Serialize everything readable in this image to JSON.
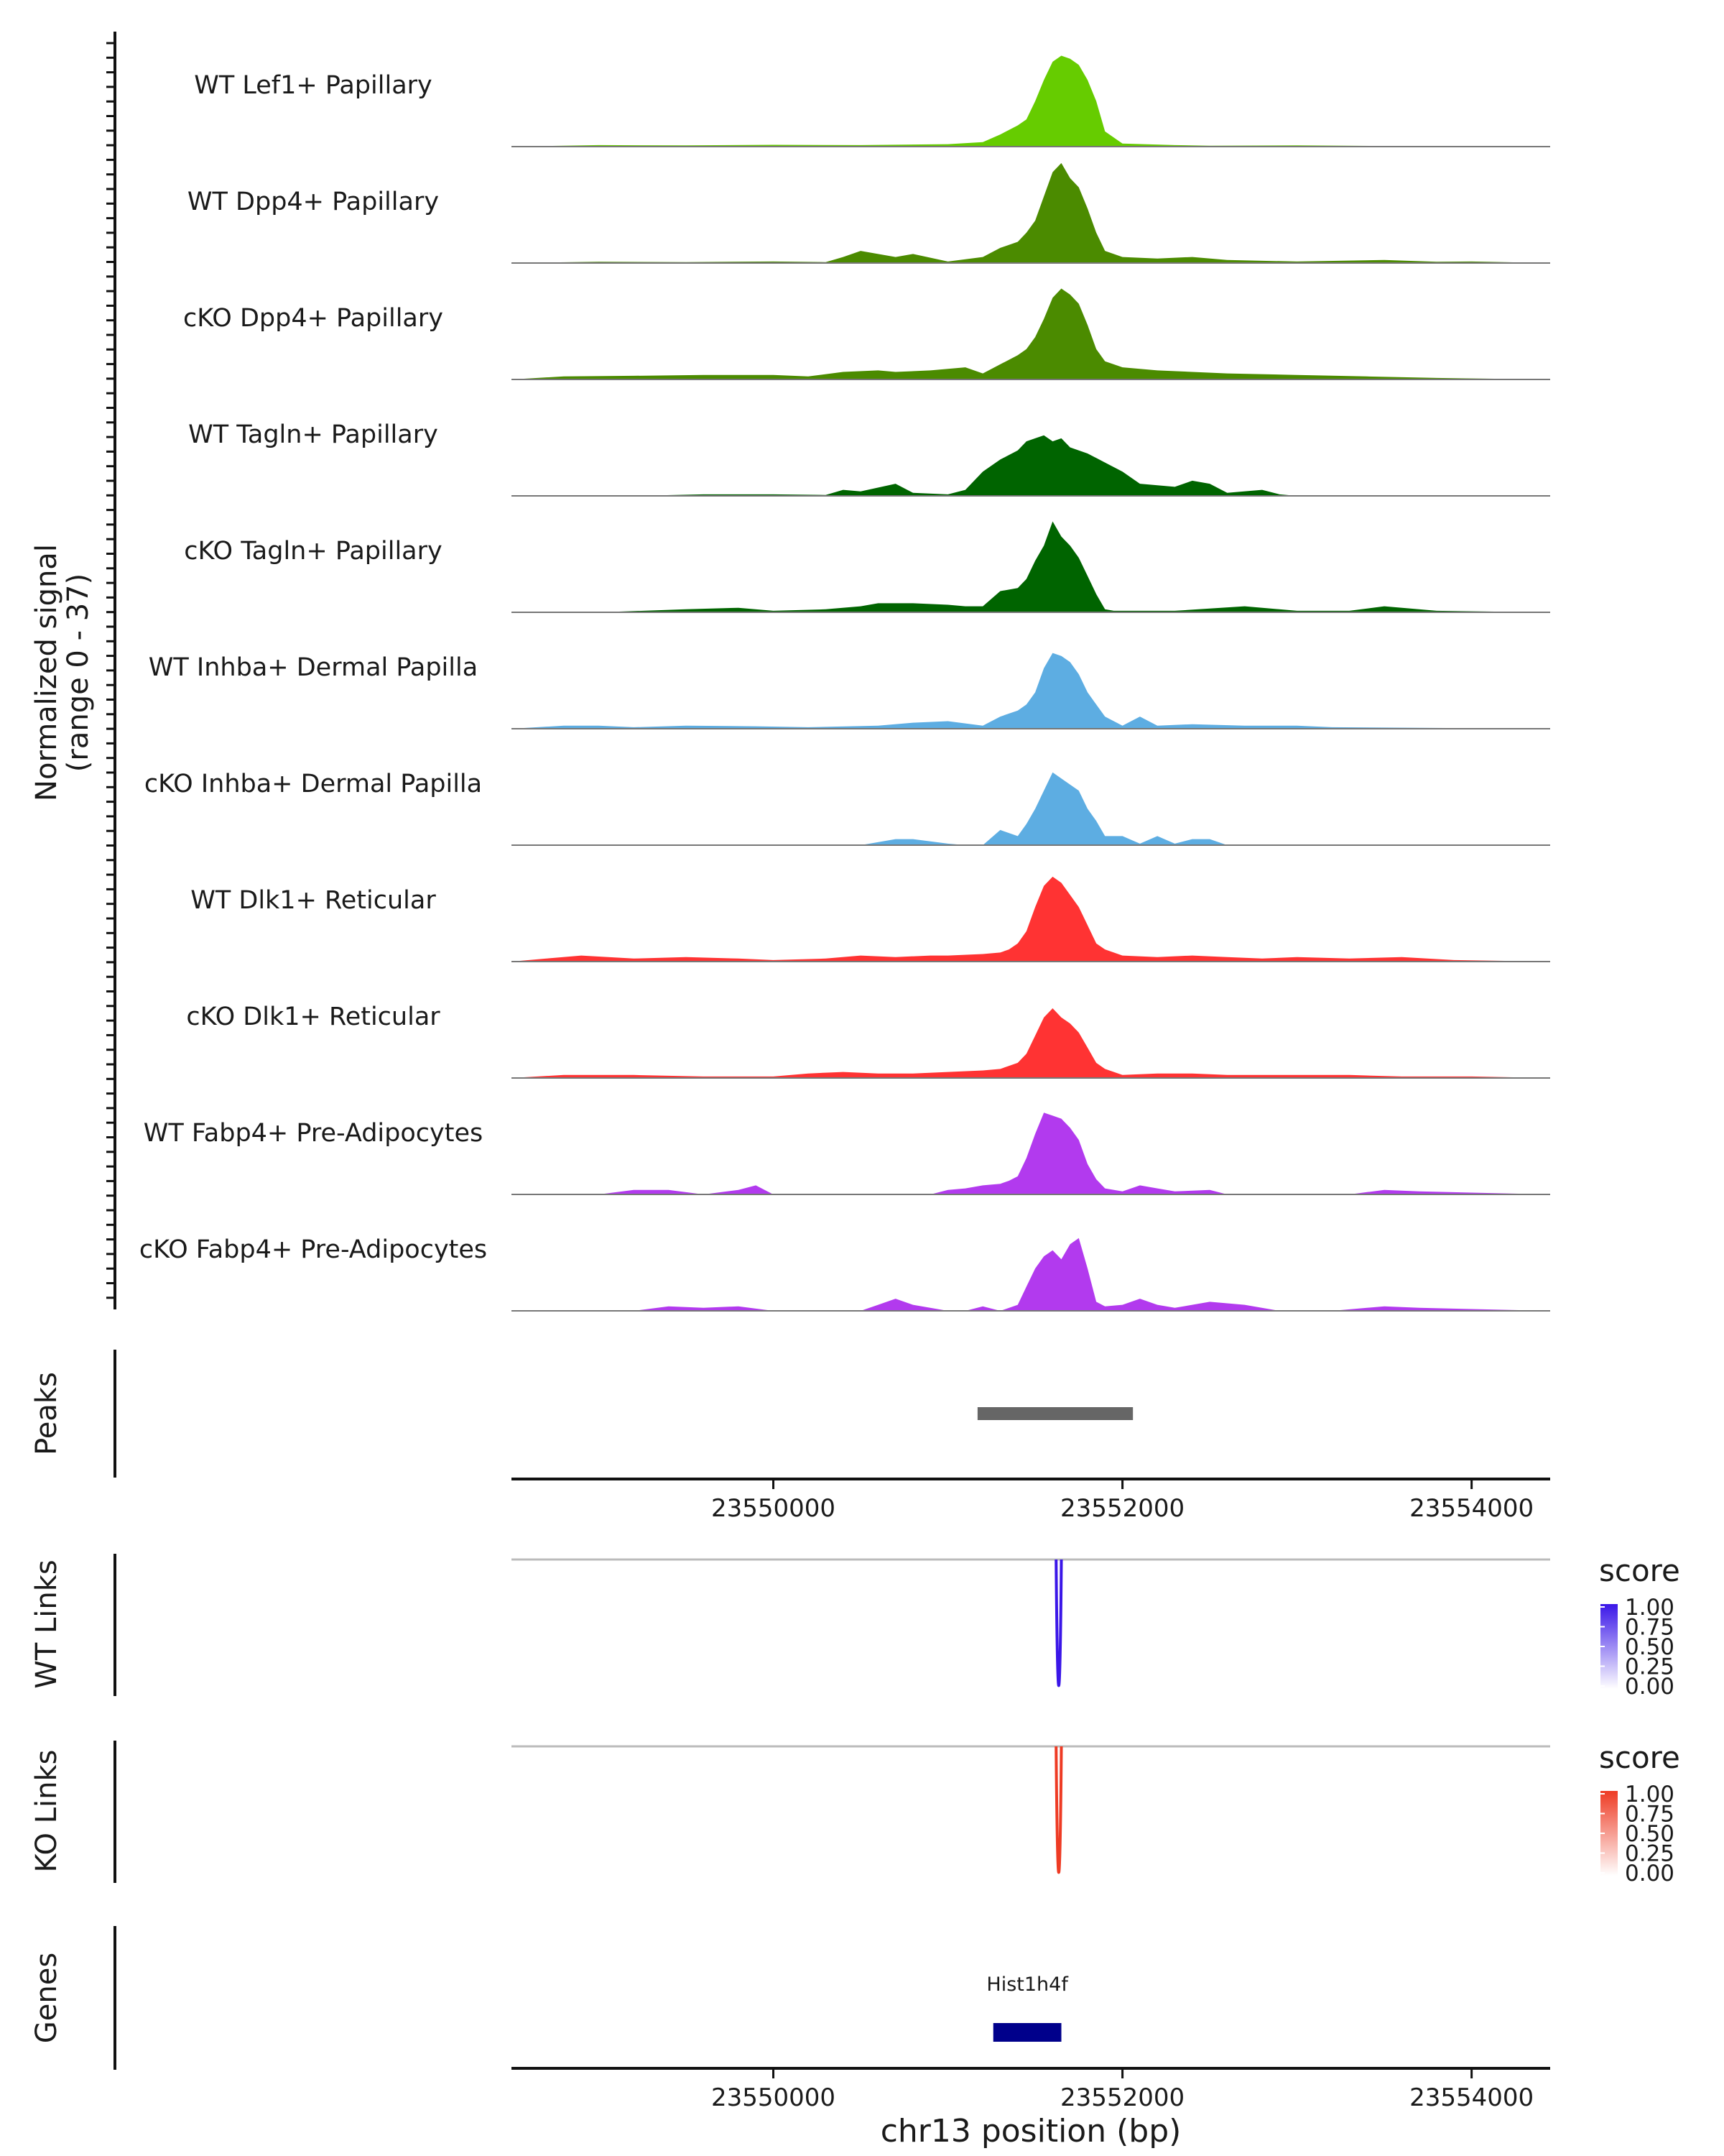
{
  "chart_data": {
    "type": "area",
    "title": "",
    "xlabel": "chr13 position (bp)",
    "x_range": [
      23548500,
      23554450
    ],
    "x_ticks": [
      23550000,
      23552000,
      23554000
    ],
    "x_tick_labels": [
      "23550000",
      "23552000",
      "23554000"
    ],
    "coverage_panel": {
      "ylabel_line1": "Normalized signal",
      "ylabel_line2": "(range 0 - 37)",
      "y_range": [
        0,
        37
      ],
      "tracks": [
        {
          "name": "WT Lef1+ Papillary",
          "color": "#66CC00",
          "x": [
            23548500,
            23549000,
            23549500,
            23550000,
            23550500,
            23551000,
            23551200,
            23551300,
            23551400,
            23551450,
            23551500,
            23551550,
            23551600,
            23551650,
            23551700,
            23551750,
            23551800,
            23551850,
            23551900,
            23552000,
            23552300,
            23552500,
            23553000,
            23553500,
            23554000,
            23554450
          ],
          "y": [
            0,
            0.5,
            0.4,
            0.6,
            0.5,
            0.8,
            1.5,
            4,
            7,
            9,
            15,
            22,
            28,
            30,
            29,
            27,
            22,
            15,
            5,
            1,
            0.5,
            0.3,
            0.4,
            0.2,
            0.2,
            0
          ]
        },
        {
          "name": "WT Dpp4+ Papillary",
          "color": "#4B8B00",
          "x": [
            23548500,
            23549000,
            23549500,
            23550000,
            23550300,
            23550400,
            23550500,
            23550700,
            23550800,
            23551000,
            23551200,
            23551300,
            23551400,
            23551450,
            23551500,
            23551550,
            23551600,
            23551650,
            23551700,
            23551750,
            23551800,
            23551850,
            23551900,
            23552000,
            23552200,
            23552400,
            23552600,
            23553000,
            23553500,
            23553800,
            23554000,
            23554450
          ],
          "y": [
            0,
            0.4,
            0.3,
            0.5,
            0.3,
            2,
            4,
            2,
            3,
            0.5,
            2,
            5,
            7,
            10,
            14,
            22,
            30,
            33,
            28,
            25,
            18,
            10,
            4,
            2,
            1.5,
            2,
            1,
            0.5,
            1,
            0.4,
            0.5,
            0
          ]
        },
        {
          "name": "cKO Dpp4+ Papillary",
          "color": "#4B8B00",
          "x": [
            23548500,
            23548800,
            23549200,
            23549600,
            23550000,
            23550200,
            23550400,
            23550600,
            23550700,
            23550900,
            23551100,
            23551200,
            23551300,
            23551400,
            23551450,
            23551500,
            23551550,
            23551600,
            23551650,
            23551700,
            23551750,
            23551800,
            23551850,
            23551900,
            23552000,
            23552200,
            23552400,
            23552600,
            23553000,
            23553400,
            23553800,
            23554450
          ],
          "y": [
            0,
            1,
            1.2,
            1.5,
            1.5,
            1,
            2.5,
            3,
            2.5,
            3,
            4,
            2,
            5,
            8,
            10,
            14,
            20,
            27,
            30,
            28,
            25,
            18,
            10,
            6,
            4,
            3,
            2.5,
            2,
            1.5,
            1,
            0.5,
            0
          ]
        },
        {
          "name": "WT Tagln+ Papillary",
          "color": "#006400",
          "x": [
            23548500,
            23549200,
            23549600,
            23550000,
            23550300,
            23550400,
            23550500,
            23550700,
            23550800,
            23551000,
            23551100,
            23551200,
            23551300,
            23551400,
            23551450,
            23551500,
            23551550,
            23551600,
            23551650,
            23551700,
            23551750,
            23551800,
            23551900,
            23552000,
            23552100,
            23552300,
            23552400,
            23552500,
            23552600,
            23552800,
            23552900,
            23553000,
            23554450
          ],
          "y": [
            0,
            0,
            0.5,
            0.5,
            0.3,
            2,
            1.5,
            4,
            1,
            0.5,
            2,
            8,
            12,
            15,
            18,
            19,
            20,
            18,
            19,
            16,
            15,
            14,
            11,
            8,
            4,
            3,
            5,
            4,
            1,
            2,
            0.5,
            0,
            0
          ]
        },
        {
          "name": "cKO Tagln+ Papillary",
          "color": "#006400",
          "x": [
            23548500,
            23549000,
            23549500,
            23549800,
            23550000,
            23550300,
            23550500,
            23550600,
            23550800,
            23551000,
            23551100,
            23551200,
            23551300,
            23551400,
            23551450,
            23551500,
            23551550,
            23551600,
            23551650,
            23551700,
            23551750,
            23551800,
            23551850,
            23551900,
            23551950,
            23552300,
            23552700,
            23553000,
            23553300,
            23553500,
            23553800,
            23554450
          ],
          "y": [
            0,
            0,
            1,
            1.5,
            0.5,
            1,
            2,
            3,
            3,
            2.5,
            2,
            2,
            7,
            8,
            11,
            17,
            22,
            30,
            25,
            22,
            18,
            12,
            6,
            1,
            0.5,
            0.5,
            2,
            0.5,
            0.5,
            2,
            0.5,
            0
          ]
        },
        {
          "name": "WT Inhba+ Dermal Papilla",
          "color": "#5DADE2",
          "x": [
            23548500,
            23548800,
            23549000,
            23549200,
            23549500,
            23549900,
            23550200,
            23550600,
            23550800,
            23551000,
            23551200,
            23551300,
            23551350,
            23551400,
            23551450,
            23551500,
            23551550,
            23551600,
            23551650,
            23551700,
            23551750,
            23551800,
            23551850,
            23551900,
            23552000,
            23552100,
            23552200,
            23552400,
            23552700,
            23553000,
            23553200,
            23554450
          ],
          "y": [
            0,
            1,
            1,
            0.5,
            1,
            0.8,
            0.5,
            1,
            2,
            2.5,
            1,
            4,
            5,
            6,
            8,
            12,
            20,
            25,
            24,
            22,
            18,
            12,
            8,
            4,
            1,
            4,
            1,
            1.5,
            1,
            1,
            0.5,
            0
          ]
        },
        {
          "name": "cKO Inhba+ Dermal Papilla",
          "color": "#5DADE2",
          "x": [
            23548500,
            23549500,
            23550000,
            23550500,
            23550700,
            23550800,
            23551000,
            23551100,
            23551200,
            23551300,
            23551400,
            23551450,
            23551500,
            23551550,
            23551600,
            23551650,
            23551700,
            23551750,
            23551800,
            23551850,
            23551900,
            23552000,
            23552100,
            23552200,
            23552300,
            23552400,
            23552500,
            23552600,
            23554450
          ],
          "y": [
            0,
            0,
            0,
            0,
            2,
            2,
            0.5,
            0,
            0,
            5,
            3,
            7,
            12,
            18,
            24,
            22,
            20,
            18,
            12,
            8,
            3,
            3,
            0.5,
            3,
            0.5,
            2,
            2,
            0,
            0
          ]
        },
        {
          "name": "WT Dlk1+ Reticular",
          "color": "#FF3333",
          "x": [
            23548500,
            23548700,
            23548900,
            23549200,
            23549500,
            23549800,
            23550000,
            23550300,
            23550500,
            23550700,
            23550900,
            23551000,
            23551200,
            23551300,
            23551350,
            23551400,
            23551450,
            23551500,
            23551550,
            23551600,
            23551650,
            23551700,
            23551750,
            23551800,
            23551850,
            23551900,
            23552000,
            23552200,
            23552400,
            23552600,
            23552800,
            23553000,
            23553300,
            23553600,
            23553900,
            23554450
          ],
          "y": [
            0,
            1,
            2,
            1,
            1.5,
            1,
            0.5,
            1,
            2,
            1.5,
            2,
            2,
            2.5,
            3,
            4,
            6,
            10,
            18,
            25,
            28,
            26,
            22,
            18,
            12,
            6,
            4,
            2,
            1.5,
            2,
            1.5,
            1,
            1.5,
            1,
            1.5,
            0.5,
            0
          ]
        },
        {
          "name": "cKO Dlk1+ Reticular",
          "color": "#FF3333",
          "x": [
            23548500,
            23548800,
            23549200,
            23549600,
            23550000,
            23550200,
            23550400,
            23550600,
            23550800,
            23551000,
            23551200,
            23551300,
            23551350,
            23551400,
            23551450,
            23551500,
            23551550,
            23551600,
            23551650,
            23551700,
            23551750,
            23551800,
            23551850,
            23551900,
            23552000,
            23552200,
            23552400,
            23552600,
            23552800,
            23553000,
            23553300,
            23553600,
            23554000,
            23554450
          ],
          "y": [
            0,
            1,
            1,
            0.5,
            0.5,
            1.5,
            2,
            1.5,
            1.5,
            2,
            2.5,
            3,
            4,
            5,
            8,
            14,
            20,
            23,
            20,
            18,
            15,
            10,
            5,
            3,
            1,
            1.5,
            1.5,
            1,
            1,
            1,
            1,
            0.5,
            0.5,
            0
          ]
        },
        {
          "name": "WT Fabp4+ Pre-Adipocytes",
          "color": "#B23AEE",
          "x": [
            23548500,
            23549000,
            23549200,
            23549400,
            23549600,
            23549800,
            23549900,
            23550000,
            23550500,
            23550900,
            23551000,
            23551100,
            23551200,
            23551300,
            23551350,
            23551400,
            23551450,
            23551500,
            23551550,
            23551600,
            23551650,
            23551700,
            23551750,
            23551800,
            23551850,
            23551900,
            23552000,
            23552100,
            23552200,
            23552300,
            23552500,
            23552600,
            23553000,
            23553300,
            23553500,
            23553700,
            23554450
          ],
          "y": [
            0,
            0,
            1.5,
            1.5,
            0,
            1.5,
            3,
            0,
            0,
            0,
            1.5,
            2,
            3,
            3.5,
            4.5,
            6,
            12,
            20,
            27,
            26,
            25,
            22,
            18,
            10,
            5,
            2,
            1,
            3,
            2,
            1,
            1.5,
            0,
            0,
            0,
            1.5,
            1,
            0
          ]
        },
        {
          "name": "cKO Fabp4+ Pre-Adipocytes",
          "color": "#B23AEE",
          "x": [
            23548500,
            23549200,
            23549400,
            23549600,
            23549800,
            23550000,
            23550500,
            23550600,
            23550700,
            23550800,
            23551000,
            23551100,
            23551200,
            23551300,
            23551400,
            23551450,
            23551500,
            23551550,
            23551600,
            23551650,
            23551700,
            23551750,
            23551800,
            23551850,
            23551900,
            23552000,
            23552100,
            23552200,
            23552300,
            23552500,
            23552700,
            23552900,
            23553200,
            23553500,
            23553700,
            23554450
          ],
          "y": [
            0,
            0,
            1.5,
            1,
            1.5,
            0,
            0,
            2,
            4,
            2,
            0,
            0,
            1.5,
            0,
            2,
            8,
            14,
            18,
            20,
            17,
            22,
            24,
            14,
            3,
            1.5,
            2,
            4,
            2,
            1,
            3,
            2,
            0,
            0,
            1.5,
            1,
            0
          ]
        }
      ]
    },
    "peaks": {
      "label": "Peaks",
      "regions": [
        {
          "start": 23551170,
          "end": 23552060
        }
      ],
      "color": "#666666"
    },
    "links": [
      {
        "label": "WT Links",
        "legend_title": "score",
        "color": "#3A16E8",
        "low_color": "#FFFFFF",
        "arcs": [
          {
            "start": 23551620,
            "end": 23551650,
            "score": 1.0
          }
        ],
        "legend_ticks": [
          "1.00",
          "0.75",
          "0.50",
          "0.25",
          "0.00"
        ]
      },
      {
        "label": "KO Links",
        "legend_title": "score",
        "color": "#EE3B24",
        "low_color": "#FFFFFF",
        "arcs": [
          {
            "start": 23551620,
            "end": 23551650,
            "score": 1.0
          }
        ],
        "legend_ticks": [
          "1.00",
          "0.75",
          "0.50",
          "0.25",
          "0.00"
        ]
      }
    ],
    "genes": {
      "label": "Genes",
      "items": [
        {
          "name": "Hist1h4f",
          "start": 23551260,
          "end": 23551650,
          "color": "#00008B"
        }
      ]
    }
  }
}
